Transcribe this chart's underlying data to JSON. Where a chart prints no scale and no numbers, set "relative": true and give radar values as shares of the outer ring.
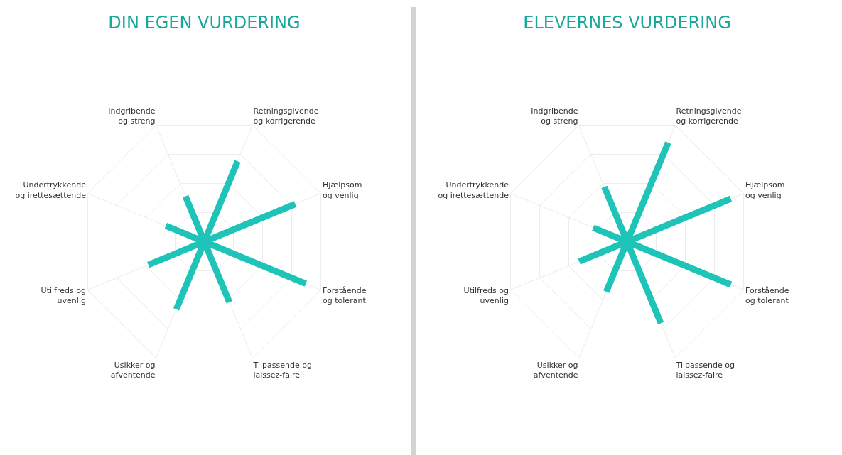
{
  "chart_data": [
    {
      "type": "radar",
      "title": "DIN EGEN VURDERING",
      "relative": true,
      "categories": [
        "Retningsgivende\nog korrigerende",
        "Hjælpsom\nog venlig",
        "Forstående\nog tolerant",
        "Tilpassende og\nlaissez-faire",
        "Usikker og\nafventende",
        "Utilfreds og\nuvenlig",
        "Undertrykkende\nog irettesættende",
        "Indgribende\nog streng"
      ],
      "series": [
        {
          "color": "#1fc4b8",
          "values": [
            0.69,
            0.78,
            0.87,
            0.52,
            0.58,
            0.48,
            0.33,
            0.39
          ]
        }
      ],
      "grid": true
    },
    {
      "type": "radar",
      "title": "ELEVERNES VURDERING",
      "relative": true,
      "categories": [
        "Retningsgivende\nog korrigerende",
        "Hjælpsom\nog venlig",
        "Forstående\nog tolerant",
        "Tilpassende og\nlaissez-faire",
        "Usikker og\nafventende",
        "Utilfreds og\nuvenlig",
        "Undertrykkende\nog irettesættende",
        "Indgribende\nog streng"
      ],
      "series": [
        {
          "color": "#1fc4b8",
          "values": [
            0.85,
            0.89,
            0.89,
            0.7,
            0.43,
            0.41,
            0.29,
            0.47
          ]
        }
      ],
      "grid": true
    }
  ]
}
